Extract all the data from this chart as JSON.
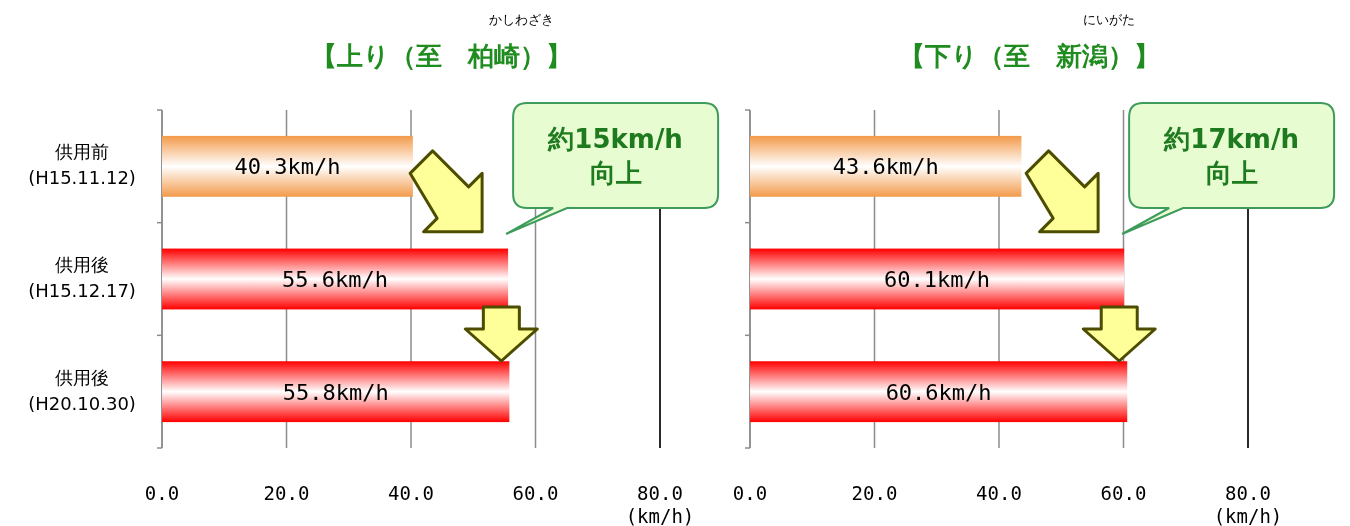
{
  "chart_data": [
    {
      "type": "bar",
      "orientation": "horizontal",
      "title": "【上り（至　柏崎）】",
      "annotations": [
        "かしわざき",
        "約15km/h\n向上"
      ],
      "xlabel": "(km/h)",
      "categories": [
        "供用前\n(H15.11.12)",
        "供用後\n(H15.12.17)",
        "供用後\n(H20.10.30)"
      ],
      "values": [
        40.3,
        55.6,
        55.8
      ],
      "value_labels": [
        "40.3km/h",
        "55.6km/h",
        "55.8km/h"
      ],
      "colors": [
        "#f39a4a",
        "#ff0000",
        "#ff0000"
      ],
      "xlim": [
        0,
        80
      ],
      "xticks": [
        {
          "value": 0,
          "label": "0.0"
        },
        {
          "value": 20,
          "label": "20.0"
        },
        {
          "value": 40,
          "label": "40.0"
        },
        {
          "value": 60,
          "label": "60.0"
        },
        {
          "value": 80,
          "label": "80.0"
        }
      ],
      "grid": "x"
    },
    {
      "type": "bar",
      "orientation": "horizontal",
      "title": "【下り（至　新潟）】",
      "annotations": [
        "にいがた",
        "約17km/h\n向上"
      ],
      "xlabel": "(km/h)",
      "categories": [
        null,
        null,
        null
      ],
      "values": [
        43.6,
        60.1,
        60.6
      ],
      "value_labels": [
        "43.6km/h",
        "60.1km/h",
        "60.6km/h"
      ],
      "colors": [
        "#f39a4a",
        "#ff0000",
        "#ff0000"
      ],
      "xlim": [
        0,
        80
      ],
      "xticks": [
        {
          "value": 0,
          "label": "0.0"
        },
        {
          "value": 20,
          "label": "20.0"
        },
        {
          "value": 40,
          "label": "40.0"
        },
        {
          "value": 60,
          "label": "60.0"
        },
        {
          "value": 80,
          "label": "80.0"
        }
      ],
      "grid": "x"
    }
  ]
}
